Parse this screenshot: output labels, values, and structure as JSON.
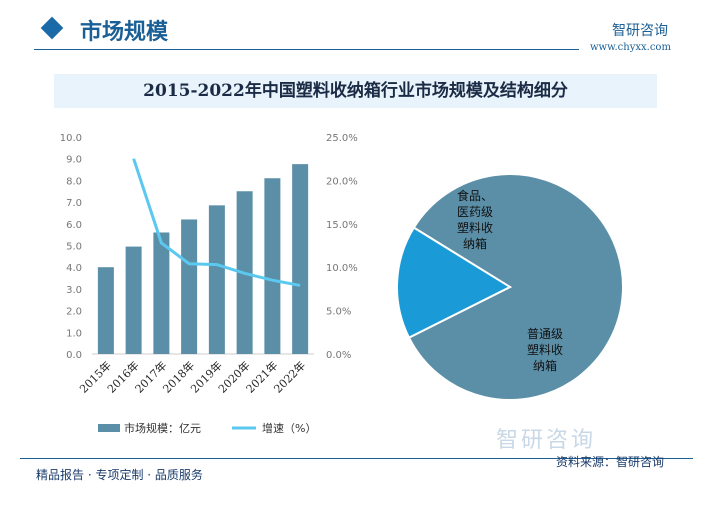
{
  "header": {
    "title": "市场规模",
    "brand": "智研咨询",
    "url": "www.chyxx.com"
  },
  "banner": "2015-2022年中国塑料收纳箱行业市场规模及结构细分",
  "footer": {
    "left": "精品报告 · 专项定制 · 品质服务",
    "right": "资料来源：智研咨询",
    "watermark": "智研咨询"
  },
  "chart_data": [
    {
      "type": "bar+line",
      "categories": [
        "2015年",
        "2016年",
        "2017年",
        "2018年",
        "2019年",
        "2020年",
        "2021年",
        "2022年"
      ],
      "series": [
        {
          "name": "市场规模：亿元",
          "type": "bar",
          "axis": "left",
          "color": "#5b8fa8",
          "values": [
            4.0,
            4.95,
            5.6,
            6.2,
            6.85,
            7.5,
            8.1,
            8.75
          ]
        },
        {
          "name": "增速（%）",
          "type": "line",
          "axis": "right",
          "color": "#5bc8f0",
          "values": [
            null,
            22.5,
            12.8,
            10.4,
            10.3,
            9.3,
            8.5,
            7.9
          ]
        }
      ],
      "ylim": [
        0,
        10
      ],
      "yticks": [
        "0.0",
        "1.0",
        "2.0",
        "3.0",
        "4.0",
        "5.0",
        "6.0",
        "7.0",
        "8.0",
        "9.0",
        "10.0"
      ],
      "y2lim": [
        0,
        25
      ],
      "y2ticks": [
        "0.0%",
        "5.0%",
        "10.0%",
        "15.0%",
        "20.0%",
        "25.0%"
      ],
      "legend": "bottom"
    },
    {
      "type": "pie",
      "slices": [
        {
          "label": "普通级塑料收纳箱",
          "lines": [
            "普通级",
            "塑料收",
            "纳箱"
          ],
          "value": 83.8,
          "color": "#5b8fa8"
        },
        {
          "label": "食品、医药级塑料收纳箱",
          "lines": [
            "食品、",
            "医药级",
            "塑料收",
            "纳箱"
          ],
          "value": 16.2,
          "color": "#1a9ad6"
        }
      ]
    }
  ]
}
